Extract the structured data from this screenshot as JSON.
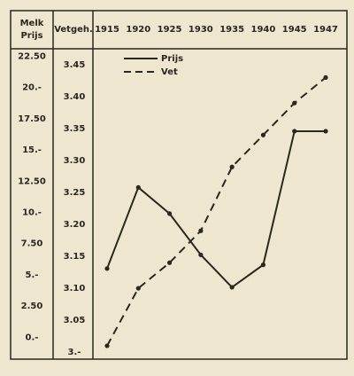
{
  "chart_data": {
    "type": "line",
    "y_label": [
      "Melk",
      "Prijs"
    ],
    "y2_label": "Vetgeh.",
    "categories": [
      "1915",
      "1920",
      "1925",
      "1930",
      "1935",
      "1940",
      "1945",
      "1947"
    ],
    "series": [
      {
        "name": "Prijs",
        "color": "#2a2620",
        "dash": false,
        "values": [
          5.5,
          12,
          9.9,
          6.6,
          4,
          5.8,
          16.5,
          16.5
        ]
      },
      {
        "name": "Vet",
        "color": "#2a2620",
        "dash": true,
        "axis": "y2",
        "values": [
          3.01,
          3.1,
          3.14,
          3.19,
          3.29,
          3.34,
          3.39,
          3.43
        ]
      }
    ],
    "ylim": [
      -1.4,
      23.1
    ],
    "yticks": [
      {
        "value": 22.5,
        "label": "22.50"
      },
      {
        "value": 20,
        "label": "20.-"
      },
      {
        "value": 17.5,
        "label": "17.50"
      },
      {
        "value": 15,
        "label": "15.-"
      },
      {
        "value": 12.5,
        "label": "12.50"
      },
      {
        "value": 10,
        "label": "10.-"
      },
      {
        "value": 7.5,
        "label": "7.50"
      },
      {
        "value": 5,
        "label": "5.-"
      },
      {
        "value": 2.5,
        "label": "2.50"
      },
      {
        "value": 0,
        "label": "0.-"
      }
    ],
    "y2lim": [
      2.996,
      3.475
    ],
    "y2ticks": [
      3.45,
      {
        "value": 3.4,
        "label": "3.40"
      },
      3.35,
      {
        "value": 3.3,
        "label": "3.30"
      },
      3.25,
      {
        "value": 3.2,
        "label": "3.20"
      },
      3.15,
      {
        "value": 3.1,
        "label": "3.10"
      },
      3.05,
      {
        "value": 3,
        "label": "3.-"
      }
    ],
    "legend": "top-left"
  }
}
